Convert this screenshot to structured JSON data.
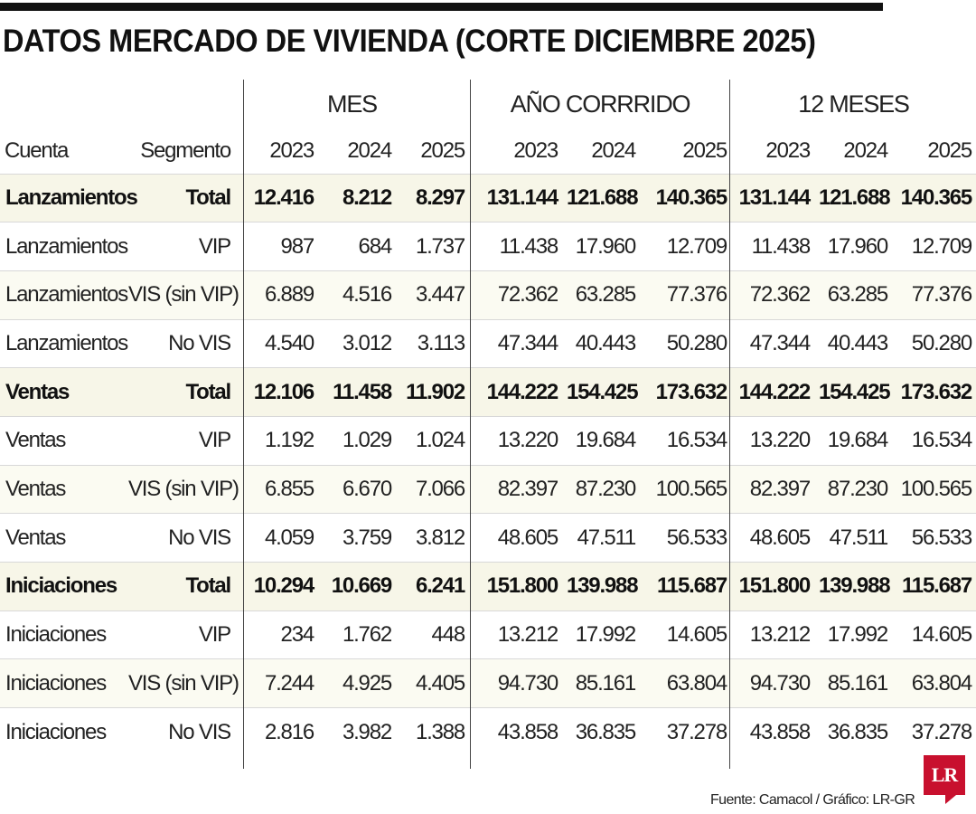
{
  "title": "DATOS MERCADO DE VIVIENDA (CORTE DICIEMBRE 2025)",
  "groups": [
    "MES",
    "AÑO CORRRIDO",
    "12 MESES"
  ],
  "columns": {
    "cuenta": "Cuenta",
    "segmento": "Segmento",
    "years": [
      "2023",
      "2024",
      "2025",
      "2023",
      "2024",
      "2025",
      "2023",
      "2024",
      "2025"
    ]
  },
  "rows": [
    {
      "cuenta": "Lanzamientos",
      "segmento": "Total",
      "total": true,
      "values": [
        "12.416",
        "8.212",
        "8.297",
        "131.144",
        "121.688",
        "140.365",
        "131.144",
        "121.688",
        "140.365"
      ]
    },
    {
      "cuenta": "Lanzamientos",
      "segmento": "VIP",
      "total": false,
      "values": [
        "987",
        "684",
        "1.737",
        "11.438",
        "17.960",
        "12.709",
        "11.438",
        "17.960",
        "12.709"
      ]
    },
    {
      "cuenta": "Lanzamientos",
      "segmento": "VIS (sin VIP)",
      "total": false,
      "values": [
        "6.889",
        "4.516",
        "3.447",
        "72.362",
        "63.285",
        "77.376",
        "72.362",
        "63.285",
        "77.376"
      ]
    },
    {
      "cuenta": "Lanzamientos",
      "segmento": "No VIS",
      "total": false,
      "values": [
        "4.540",
        "3.012",
        "3.113",
        "47.344",
        "40.443",
        "50.280",
        "47.344",
        "40.443",
        "50.280"
      ]
    },
    {
      "cuenta": "Ventas",
      "segmento": "Total",
      "total": true,
      "values": [
        "12.106",
        "11.458",
        "11.902",
        "144.222",
        "154.425",
        "173.632",
        "144.222",
        "154.425",
        "173.632"
      ]
    },
    {
      "cuenta": "Ventas",
      "segmento": "VIP",
      "total": false,
      "values": [
        "1.192",
        "1.029",
        "1.024",
        "13.220",
        "19.684",
        "16.534",
        "13.220",
        "19.684",
        "16.534"
      ]
    },
    {
      "cuenta": "Ventas",
      "segmento": "VIS (sin VIP)",
      "total": false,
      "values": [
        "6.855",
        "6.670",
        "7.066",
        "82.397",
        "87.230",
        "100.565",
        "82.397",
        "87.230",
        "100.565"
      ]
    },
    {
      "cuenta": "Ventas",
      "segmento": "No VIS",
      "total": false,
      "values": [
        "4.059",
        "3.759",
        "3.812",
        "48.605",
        "47.511",
        "56.533",
        "48.605",
        "47.511",
        "56.533"
      ]
    },
    {
      "cuenta": "Iniciaciones",
      "segmento": "Total",
      "total": true,
      "values": [
        "10.294",
        "10.669",
        "6.241",
        "151.800",
        "139.988",
        "115.687",
        "151.800",
        "139.988",
        "115.687"
      ]
    },
    {
      "cuenta": "Iniciaciones",
      "segmento": "VIP",
      "total": false,
      "values": [
        "234",
        "1.762",
        "448",
        "13.212",
        "17.992",
        "14.605",
        "13.212",
        "17.992",
        "14.605"
      ]
    },
    {
      "cuenta": "Iniciaciones",
      "segmento": "VIS (sin VIP)",
      "total": false,
      "values": [
        "7.244",
        "4.925",
        "4.405",
        "94.730",
        "85.161",
        "63.804",
        "94.730",
        "85.161",
        "63.804"
      ]
    },
    {
      "cuenta": "Iniciaciones",
      "segmento": "No VIS",
      "total": false,
      "values": [
        "2.816",
        "3.982",
        "1.388",
        "43.858",
        "36.835",
        "37.278",
        "43.858",
        "36.835",
        "37.278"
      ]
    }
  ],
  "footer": {
    "source": "Fuente: Camacol / Gráfico: LR-GR",
    "logo": "LR"
  },
  "colors": {
    "total_row_bg": "#f7f6e8",
    "logo_red": "#c8102e",
    "rule": "#111111"
  }
}
